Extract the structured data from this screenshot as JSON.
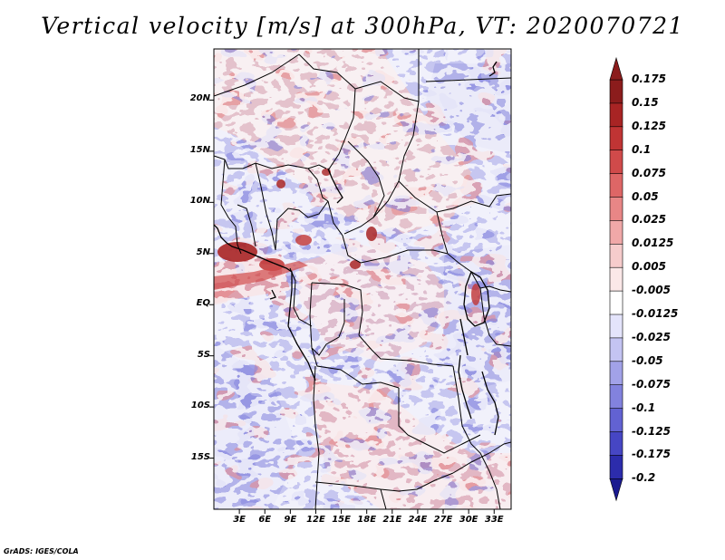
{
  "title": "Vertical velocity [m/s] at 300hPa, VT: 2020070721",
  "map": {
    "lat_ticks": [
      "20N",
      "15N",
      "10N",
      "5N",
      "EQ",
      "5S",
      "10S",
      "15S"
    ],
    "lon_ticks": [
      "3E",
      "6E",
      "9E",
      "12E",
      "15E",
      "18E",
      "21E",
      "24E",
      "27E",
      "30E",
      "33E"
    ],
    "lat_range": [
      -20,
      25
    ],
    "lon_range": [
      0,
      35
    ]
  },
  "colorbar": {
    "labels": [
      "0.175",
      "0.15",
      "0.125",
      "0.1",
      "0.075",
      "0.05",
      "0.025",
      "0.0125",
      "0.005",
      "-0.005",
      "-0.0125",
      "-0.025",
      "-0.05",
      "-0.075",
      "-0.1",
      "-0.125",
      "-0.175",
      "-0.2"
    ],
    "colors": [
      "#8b1c1c",
      "#a82424",
      "#c03434",
      "#d04a4a",
      "#de6666",
      "#e88686",
      "#f0a8a8",
      "#f6cccc",
      "#fbe8e8",
      "#ffffff",
      "#e4e4fb",
      "#c4c4f2",
      "#a2a2e8",
      "#8282de",
      "#6262d2",
      "#4646c4",
      "#2c2cac",
      "#1a1a90"
    ],
    "top_arrow_color": "#8b1c1c",
    "bottom_arrow_color": "#1a1a90"
  },
  "credit": "GrADS: IGES/COLA"
}
